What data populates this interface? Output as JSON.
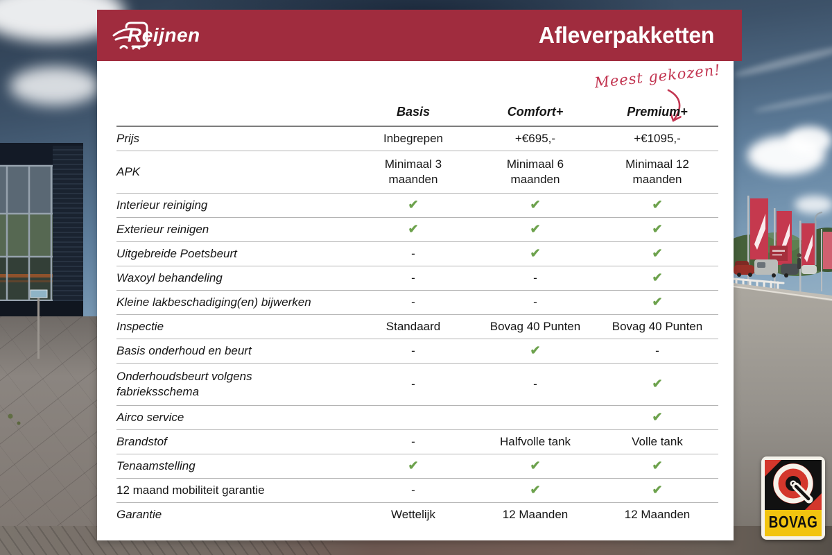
{
  "brand": {
    "name": "Reijnen"
  },
  "banner": {
    "title": "Afleverpakketten"
  },
  "annotation": {
    "text": "Meest gekozen!"
  },
  "table": {
    "columns": [
      "Basis",
      "Comfort+",
      "Premium+"
    ],
    "rows": [
      {
        "label": "Prijs",
        "values": [
          "Inbegrepen",
          "+€695,-",
          "+€1095,-"
        ]
      },
      {
        "label": "APK",
        "tall": true,
        "values": [
          "Minimaal 3\nmaanden",
          "Minimaal 6\nmaanden",
          "Minimaal 12\nmaanden"
        ]
      },
      {
        "label": "Interieur reiniging",
        "values": [
          "✔",
          "✔",
          "✔"
        ]
      },
      {
        "label": "Exterieur reinigen",
        "values": [
          "✔",
          "✔",
          "✔"
        ]
      },
      {
        "label": "Uitgebreide Poetsbeurt",
        "values": [
          "-",
          "✔",
          "✔"
        ]
      },
      {
        "label": "Waxoyl behandeling",
        "values": [
          "-",
          "-",
          "✔"
        ]
      },
      {
        "label": "Kleine lakbeschadiging(en) bijwerken",
        "values": [
          "-",
          "-",
          "✔"
        ]
      },
      {
        "label": "Inspectie",
        "values": [
          "Standaard",
          "Bovag 40 Punten",
          "Bovag 40 Punten"
        ]
      },
      {
        "label": "Basis onderhoud en beurt",
        "values": [
          "-",
          "✔",
          "-"
        ]
      },
      {
        "label": "Onderhoudsbeurt volgens\nfabrieksschema",
        "tall": true,
        "values": [
          "-",
          "-",
          "✔"
        ]
      },
      {
        "label": "Airco service",
        "values": [
          "",
          "",
          "✔"
        ]
      },
      {
        "label": "Brandstof",
        "values": [
          "-",
          "Halfvolle tank",
          "Volle tank"
        ]
      },
      {
        "label": "Tenaamstelling",
        "values": [
          "✔",
          "✔",
          "✔"
        ]
      },
      {
        "label": "12 maand mobiliteit garantie",
        "upright": true,
        "values": [
          "-",
          "✔",
          "✔"
        ]
      },
      {
        "label": "Garantie",
        "values": [
          "Wettelijk",
          "12 Maanden",
          "12 Maanden"
        ]
      }
    ]
  },
  "badge": {
    "label": "BOVAG"
  },
  "colors": {
    "banner_red": "#a02c3e",
    "script_red": "#c23551",
    "check_green": "#6da24d",
    "badge_yellow": "#f2c40f",
    "badge_red": "#d3372c"
  }
}
